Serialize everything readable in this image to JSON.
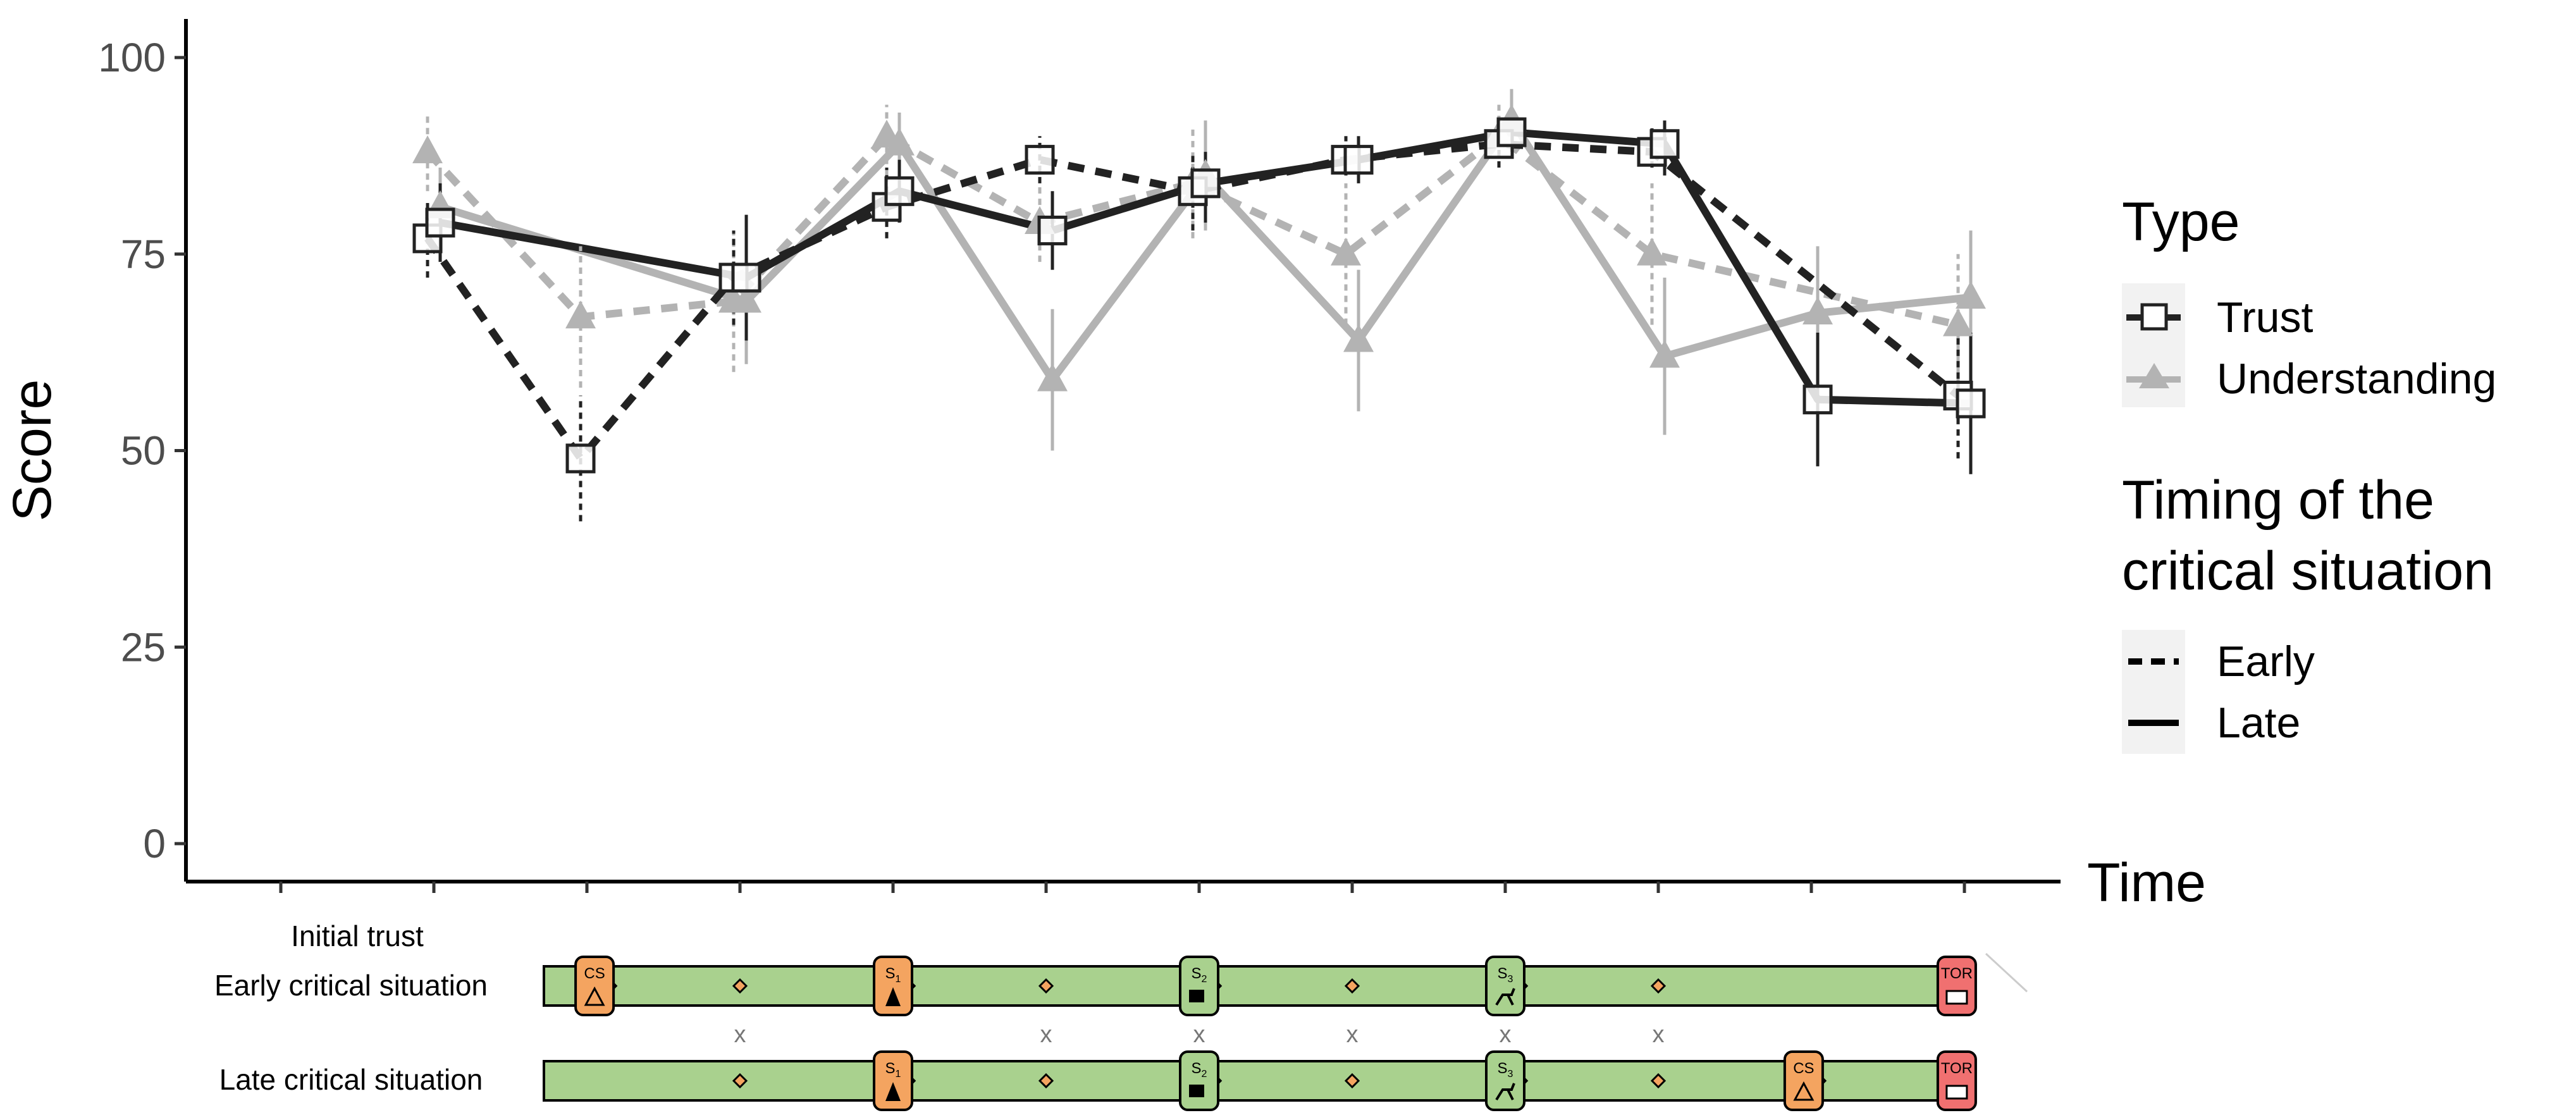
{
  "chart_data": {
    "type": "line",
    "xlabel": "Time",
    "ylabel": "Score",
    "ylim": [
      0,
      100
    ],
    "yticks": [
      0,
      25,
      50,
      75,
      100
    ],
    "x": [
      1,
      2,
      3,
      4,
      5,
      6,
      7,
      8,
      9,
      10,
      11
    ],
    "grid": false,
    "legend_placement": "right",
    "series": [
      {
        "type": "Trust",
        "timing": "Early",
        "color": "#222222",
        "marker": "open-square",
        "linestyle": "dashed",
        "values": [
          77,
          49,
          72,
          81,
          87,
          83,
          87,
          89,
          88,
          null,
          57
        ],
        "error_low": [
          72,
          41,
          66,
          77,
          84,
          78,
          85,
          86,
          86,
          null,
          49
        ],
        "error_high": [
          82,
          57,
          78,
          86,
          90,
          88,
          90,
          92,
          91,
          null,
          65
        ]
      },
      {
        "type": "Trust",
        "timing": "Late",
        "color": "#222222",
        "marker": "open-square",
        "linestyle": "solid",
        "values": [
          79,
          null,
          72,
          83,
          78,
          84,
          87,
          90.5,
          89,
          56.5,
          56
        ],
        "error_low": [
          74,
          null,
          64,
          79,
          73,
          79,
          84,
          88,
          85,
          48,
          47
        ],
        "error_high": [
          84,
          null,
          80,
          87,
          83,
          88,
          90,
          93,
          92,
          65,
          65
        ]
      },
      {
        "type": "Understanding",
        "timing": "Early",
        "color": "#b3b3b3",
        "marker": "triangle",
        "linestyle": "dashed",
        "values": [
          88,
          67,
          69,
          90,
          79,
          84,
          75,
          90,
          75,
          null,
          66
        ],
        "error_low": [
          83,
          58,
          60,
          85,
          74,
          77,
          66,
          86,
          66,
          null,
          57
        ],
        "error_high": [
          93,
          76,
          78,
          94,
          84,
          91,
          84,
          94,
          84,
          null,
          75
        ]
      },
      {
        "type": "Understanding",
        "timing": "Late",
        "color": "#b3b3b3",
        "marker": "triangle",
        "linestyle": "solid",
        "values": [
          81,
          null,
          69,
          89,
          59,
          85,
          64,
          92,
          62,
          67.5,
          69.5
        ],
        "error_low": [
          76,
          null,
          61,
          85,
          50,
          78,
          55,
          88,
          52,
          59,
          61
        ],
        "error_high": [
          86,
          null,
          77,
          93,
          68,
          92,
          73,
          96,
          72,
          76,
          78
        ]
      }
    ]
  },
  "legend": {
    "type_title": "Type",
    "type_items": [
      "Trust",
      "Understanding"
    ],
    "timing_title_line1": "Timing of the",
    "timing_title_line2": "critical situation",
    "timing_items": [
      "Early",
      "Late"
    ]
  },
  "timeline": {
    "initial_label": "Initial trust",
    "early_label": "Early critical situation",
    "late_label": "Late critical situation",
    "colors": {
      "bar": "#a9d18e",
      "critical": "#f4a460",
      "scenario": "#a9d18e",
      "tor": "#f07070"
    },
    "early_badges": [
      {
        "kind": "critical",
        "text": "CS",
        "sub": "",
        "slot": 2.05
      },
      {
        "kind": "critical",
        "text": "S",
        "sub": "1",
        "slot": 4
      },
      {
        "kind": "scenario",
        "text": "S",
        "sub": "2",
        "slot": 6
      },
      {
        "kind": "scenario",
        "text": "S",
        "sub": "3",
        "slot": 8
      },
      {
        "kind": "tor",
        "text": "TOR",
        "sub": "",
        "slot": 10.95
      }
    ],
    "late_badges": [
      {
        "kind": "critical",
        "text": "S",
        "sub": "1",
        "slot": 4
      },
      {
        "kind": "scenario",
        "text": "S",
        "sub": "2",
        "slot": 6
      },
      {
        "kind": "scenario",
        "text": "S",
        "sub": "3",
        "slot": 8
      },
      {
        "kind": "critical",
        "text": "CS",
        "sub": "",
        "slot": 9.95
      },
      {
        "kind": "tor",
        "text": "TOR",
        "sub": "",
        "slot": 10.95
      }
    ],
    "x_markers": [
      "x",
      "x",
      "x",
      "x",
      "x",
      "x"
    ]
  }
}
